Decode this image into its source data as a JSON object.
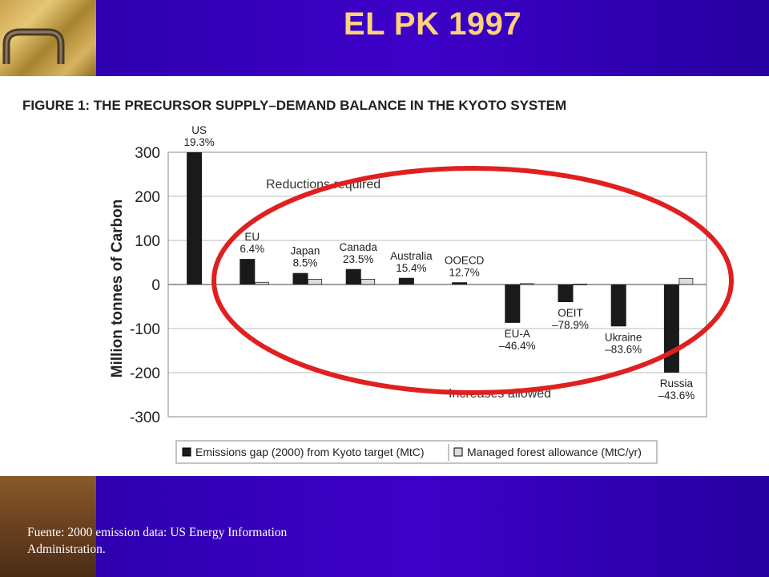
{
  "slide": {
    "title": "EL PK 1997",
    "footer_line1": "Fuente: 2000 emission data: US Energy Information",
    "footer_line2": "Administration."
  },
  "colors": {
    "background": "#3300b8",
    "title": "#ffd27a",
    "bar_dark": "#1a1a1a",
    "bar_light": "#dddddd",
    "highlight_ellipse": "#e02020"
  },
  "chart_data": {
    "type": "bar",
    "title": "FIGURE 1: THE PRECURSOR SUPPLY–DEMAND BALANCE IN THE KYOTO SYSTEM",
    "ylabel": "Million tonnes of Carbon",
    "ylim": [
      -300,
      300
    ],
    "yticks": [
      "300",
      "200",
      "100",
      "0",
      "-100",
      "-200",
      "-300"
    ],
    "grid": true,
    "annotations": [
      "Reductions required",
      "Increases allowed"
    ],
    "categories": [
      {
        "name": "US",
        "pct": "19.3%"
      },
      {
        "name": "EU",
        "pct": "6.4%"
      },
      {
        "name": "Japan",
        "pct": "8.5%"
      },
      {
        "name": "Canada",
        "pct": "23.5%"
      },
      {
        "name": "Australia",
        "pct": "15.4%"
      },
      {
        "name": "OOECD",
        "pct": "12.7%"
      },
      {
        "name": "EU-A",
        "pct": "–46.4%"
      },
      {
        "name": "OEIT",
        "pct": "–78.9%"
      },
      {
        "name": "Ukraine",
        "pct": "–83.6%"
      },
      {
        "name": "Russia",
        "pct": "–43.6%"
      }
    ],
    "series": [
      {
        "name": "Emissions gap (2000) from Kyoto target (MtC)",
        "values": [
          305,
          58,
          26,
          35,
          15,
          5,
          -87,
          -40,
          -95,
          -200
        ]
      },
      {
        "name": "Managed forest allowance (MtC/yr)",
        "values": [
          0,
          5,
          12,
          12,
          0,
          0,
          2,
          1,
          0,
          14
        ]
      }
    ],
    "legend_placement": "bottom"
  }
}
